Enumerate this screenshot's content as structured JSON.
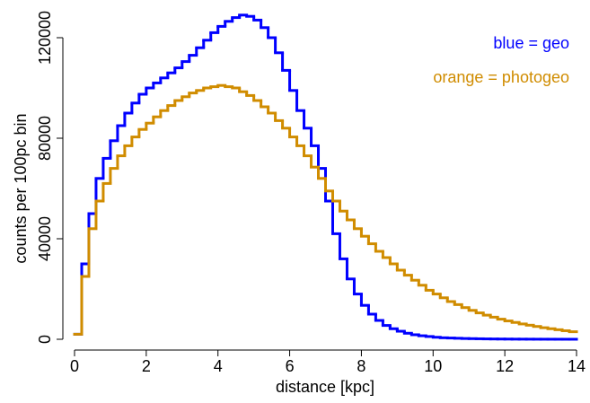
{
  "chart_data": {
    "type": "step",
    "x_label": "distance [kpc]",
    "y_label": "counts per 100pc bin",
    "x": [
      0,
      0.2,
      0.4,
      0.6,
      0.8,
      1,
      1.2,
      1.4,
      1.6,
      1.8,
      2,
      2.2,
      2.4,
      2.6,
      2.8,
      3,
      3.2,
      3.4,
      3.6,
      3.8,
      4,
      4.2,
      4.4,
      4.6,
      4.8,
      5,
      5.2,
      5.4,
      5.6,
      5.8,
      6,
      6.2,
      6.4,
      6.6,
      6.8,
      7,
      7.2,
      7.4,
      7.6,
      7.8,
      8,
      8.2,
      8.4,
      8.6,
      8.8,
      9,
      9.2,
      9.4,
      9.6,
      9.8,
      10,
      10.2,
      10.4,
      10.6,
      10.8,
      11,
      11.2,
      11.4,
      11.6,
      11.8,
      12,
      12.2,
      12.4,
      12.6,
      12.8,
      13,
      13.2,
      13.4,
      13.6,
      13.8
    ],
    "series": [
      {
        "name": "blue = geo",
        "color": "#0000ff",
        "values": [
          2000,
          30000,
          50000,
          64000,
          72000,
          79000,
          85000,
          90000,
          94000,
          97500,
          100000,
          102000,
          104000,
          106000,
          108000,
          110500,
          113000,
          116000,
          119000,
          122000,
          124500,
          126500,
          128000,
          129000,
          128500,
          127000,
          124000,
          120000,
          114000,
          107000,
          99000,
          91000,
          84000,
          77000,
          68000,
          55000,
          42000,
          32000,
          24000,
          18000,
          13500,
          10000,
          7500,
          5500,
          4200,
          3200,
          2400,
          1800,
          1400,
          1100,
          800,
          600,
          500,
          400,
          300,
          250,
          200,
          150,
          120,
          100,
          80,
          60,
          50,
          40,
          30,
          25,
          20,
          15,
          10,
          10
        ]
      },
      {
        "name": "orange = photogeo",
        "color": "#d08c00",
        "values": [
          2000,
          25000,
          44000,
          55000,
          62000,
          68000,
          73000,
          77000,
          80500,
          83500,
          86000,
          88500,
          91000,
          93000,
          95000,
          96500,
          98000,
          99000,
          100000,
          100500,
          101000,
          100500,
          100000,
          98500,
          97000,
          95000,
          92500,
          90000,
          87000,
          84000,
          80500,
          77000,
          73000,
          68500,
          64000,
          59000,
          55000,
          51000,
          47500,
          44000,
          41000,
          38000,
          35000,
          32500,
          30000,
          27500,
          25500,
          23500,
          21500,
          19500,
          18000,
          16500,
          15000,
          13800,
          12600,
          11500,
          10500,
          9600,
          8800,
          8000,
          7300,
          6700,
          6100,
          5600,
          5100,
          4600,
          4200,
          3800,
          3400,
          3000
        ]
      }
    ],
    "xlim": [
      0,
      14
    ],
    "xticks": [
      0,
      2,
      4,
      6,
      8,
      10,
      12,
      14
    ],
    "ylim": [
      0,
      120000
    ],
    "yticks": [
      0,
      40000,
      80000,
      120000
    ],
    "grid": false,
    "legend": "top-right"
  }
}
